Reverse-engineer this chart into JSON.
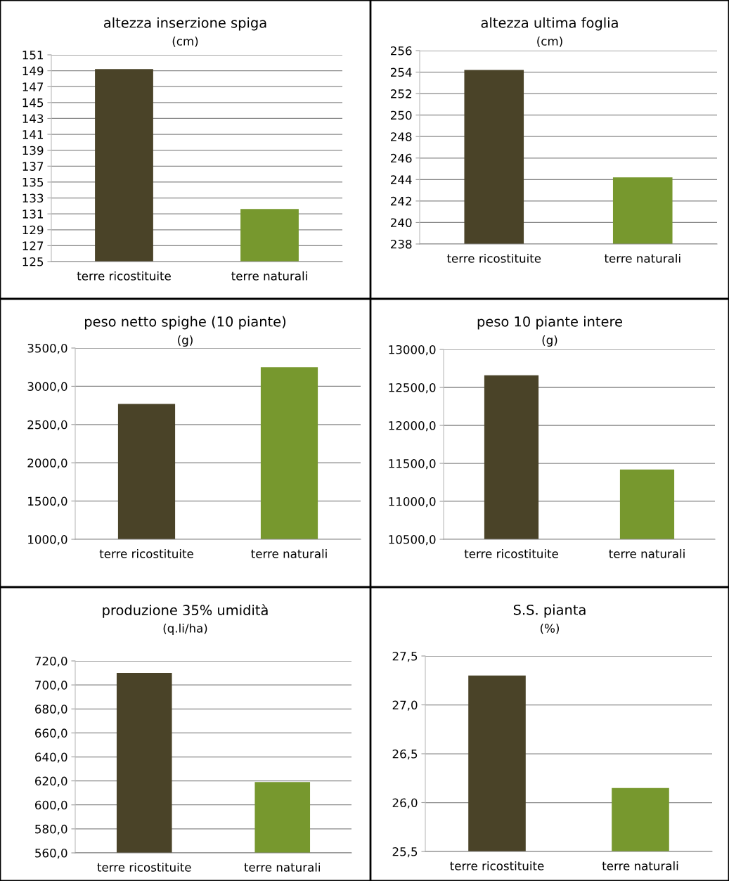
{
  "chart_data": [
    {
      "type": "bar",
      "title": "altezza inserzione spiga",
      "subtitle": "(cm)",
      "categories": [
        "terre ricostituite",
        "terre naturali"
      ],
      "values": [
        149.2,
        131.6
      ],
      "colors": [
        "#4a4328",
        "#77982e"
      ],
      "ylim": [
        125,
        151
      ],
      "yticks": [
        125,
        127,
        129,
        131,
        133,
        135,
        137,
        139,
        141,
        143,
        145,
        147,
        149,
        151
      ],
      "grid": "y"
    },
    {
      "type": "bar",
      "title": "altezza ultima foglia",
      "subtitle": "(cm)",
      "categories": [
        "terre ricostituite",
        "terre naturali"
      ],
      "values": [
        254.2,
        244.2
      ],
      "colors": [
        "#4a4328",
        "#77982e"
      ],
      "ylim": [
        238,
        256
      ],
      "yticks": [
        238,
        240,
        242,
        244,
        246,
        248,
        250,
        252,
        254,
        256
      ],
      "grid": "y"
    },
    {
      "type": "bar",
      "title": "peso netto spighe (10 piante)",
      "subtitle": "(g)",
      "categories": [
        "terre ricostituite",
        "terre naturali"
      ],
      "values": [
        2770,
        3250
      ],
      "colors": [
        "#4a4328",
        "#77982e"
      ],
      "ylim": [
        1000,
        3500
      ],
      "yticks": [
        {
          "value": 1000,
          "label": "1000,0"
        },
        {
          "value": 1500,
          "label": "1500,0"
        },
        {
          "value": 2000,
          "label": "2000,0"
        },
        {
          "value": 2500,
          "label": "2500,0"
        },
        {
          "value": 3000,
          "label": "3000,0"
        },
        {
          "value": 3500,
          "label": "3500,0"
        }
      ],
      "grid": "y"
    },
    {
      "type": "bar",
      "title": "peso 10 piante intere",
      "subtitle": "(g)",
      "categories": [
        "terre ricostituite",
        "terre naturali"
      ],
      "values": [
        12660,
        11420
      ],
      "colors": [
        "#4a4328",
        "#77982e"
      ],
      "ylim": [
        10500,
        13000
      ],
      "yticks": [
        {
          "value": 10500,
          "label": "10500,0"
        },
        {
          "value": 11000,
          "label": "11000,0"
        },
        {
          "value": 11500,
          "label": "11500,0"
        },
        {
          "value": 12000,
          "label": "12000,0"
        },
        {
          "value": 12500,
          "label": "12500,0"
        },
        {
          "value": 13000,
          "label": "13000,0"
        }
      ],
      "grid": "y"
    },
    {
      "type": "bar",
      "title": "produzione 35% umidità",
      "subtitle": "(q.li/ha)",
      "categories": [
        "terre ricostituite",
        "terre naturali"
      ],
      "values": [
        710,
        619
      ],
      "colors": [
        "#4a4328",
        "#77982e"
      ],
      "ylim": [
        560,
        720
      ],
      "yticks": [
        {
          "value": 560,
          "label": "560,0"
        },
        {
          "value": 580,
          "label": "580,0"
        },
        {
          "value": 600,
          "label": "600,0"
        },
        {
          "value": 620,
          "label": "620,0"
        },
        {
          "value": 640,
          "label": "640,0"
        },
        {
          "value": 660,
          "label": "660,0"
        },
        {
          "value": 680,
          "label": "680,0"
        },
        {
          "value": 700,
          "label": "700,0"
        },
        {
          "value": 720,
          "label": "720,0"
        }
      ],
      "grid": "y"
    },
    {
      "type": "bar",
      "title": "S.S. pianta",
      "subtitle": "(%)",
      "categories": [
        "terre ricostituite",
        "terre naturali"
      ],
      "values": [
        27.3,
        26.15
      ],
      "colors": [
        "#4a4328",
        "#77982e"
      ],
      "ylim": [
        25.5,
        27.5
      ],
      "yticks": [
        {
          "value": 25.5,
          "label": "25,5"
        },
        {
          "value": 26.0,
          "label": "26,0"
        },
        {
          "value": 26.5,
          "label": "26,5"
        },
        {
          "value": 27.0,
          "label": "27,0"
        },
        {
          "value": 27.5,
          "label": "27,5"
        }
      ],
      "grid": "y"
    }
  ]
}
